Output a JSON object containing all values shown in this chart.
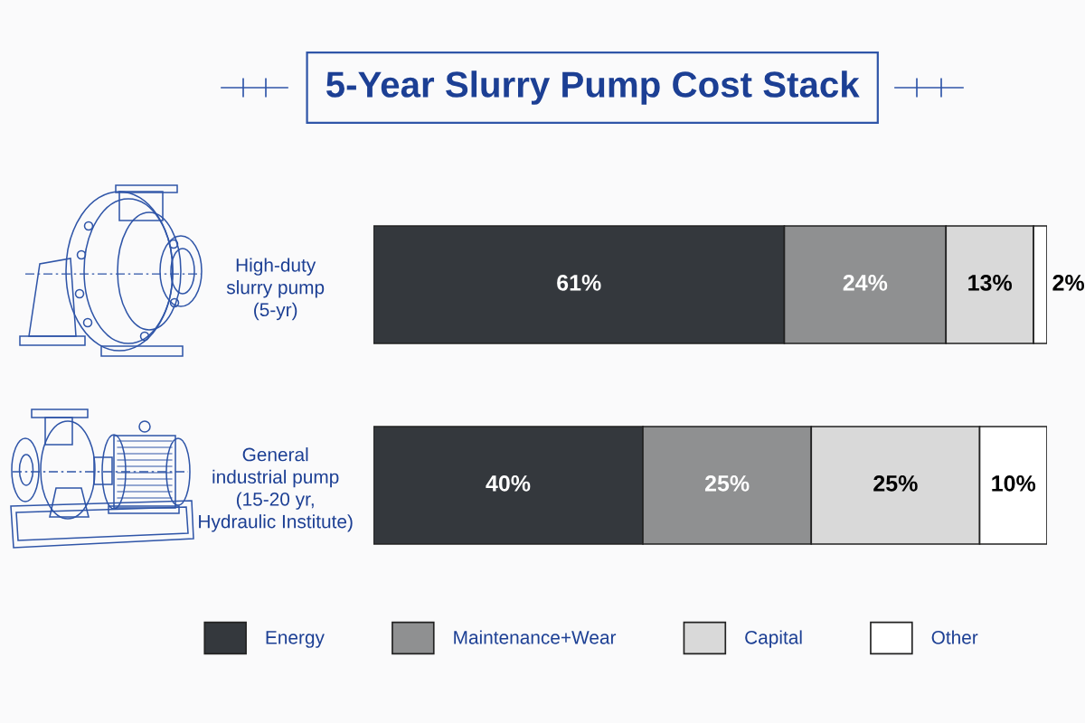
{
  "chart_data": {
    "type": "bar",
    "orientation": "horizontal",
    "stacked": true,
    "title": "5-Year Slurry Pump Cost Stack",
    "categories": [
      "High-duty\nslurry pump\n(5-yr)",
      "General\nindustrial pump\n(15-20 yr,\nHydraulic Institute)"
    ],
    "xlim": [
      0,
      100
    ],
    "tick_labels": "y",
    "legend": "bottom",
    "series": [
      {
        "name": "Energy",
        "color": "#34383d",
        "values": [
          61,
          40
        ],
        "value_labels": [
          "61%",
          "40%"
        ]
      },
      {
        "name": "Maintenance+Wear",
        "color": "#8f9091",
        "values": [
          24,
          25
        ],
        "value_labels": [
          "24%",
          "25%"
        ]
      },
      {
        "name": "Capital",
        "color": "#d9d9d9",
        "values": [
          13,
          25
        ],
        "value_labels": [
          "13%",
          "25%"
        ]
      },
      {
        "name": "Other",
        "color": "#ffffff",
        "values": [
          2,
          10
        ],
        "value_labels": [
          "2%",
          "10%"
        ]
      }
    ]
  }
}
